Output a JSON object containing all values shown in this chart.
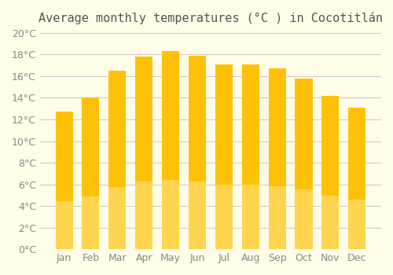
{
  "title": "Average monthly temperatures (°C ) in Cocotitlán",
  "months": [
    "Jan",
    "Feb",
    "Mar",
    "Apr",
    "May",
    "Jun",
    "Jul",
    "Aug",
    "Sep",
    "Oct",
    "Nov",
    "Dec"
  ],
  "values": [
    12.7,
    14.0,
    16.5,
    17.8,
    18.3,
    17.9,
    17.1,
    17.1,
    16.7,
    15.8,
    14.2,
    13.1
  ],
  "bar_color_top": "#FFC107",
  "bar_color_bottom": "#FFD54F",
  "background_color": "#FFFDE7",
  "grid_color": "#CCCCCC",
  "text_color": "#888888",
  "ylim": [
    0,
    20
  ],
  "yticks": [
    0,
    2,
    4,
    6,
    8,
    10,
    12,
    14,
    16,
    18,
    20
  ],
  "title_fontsize": 11,
  "tick_fontsize": 9
}
